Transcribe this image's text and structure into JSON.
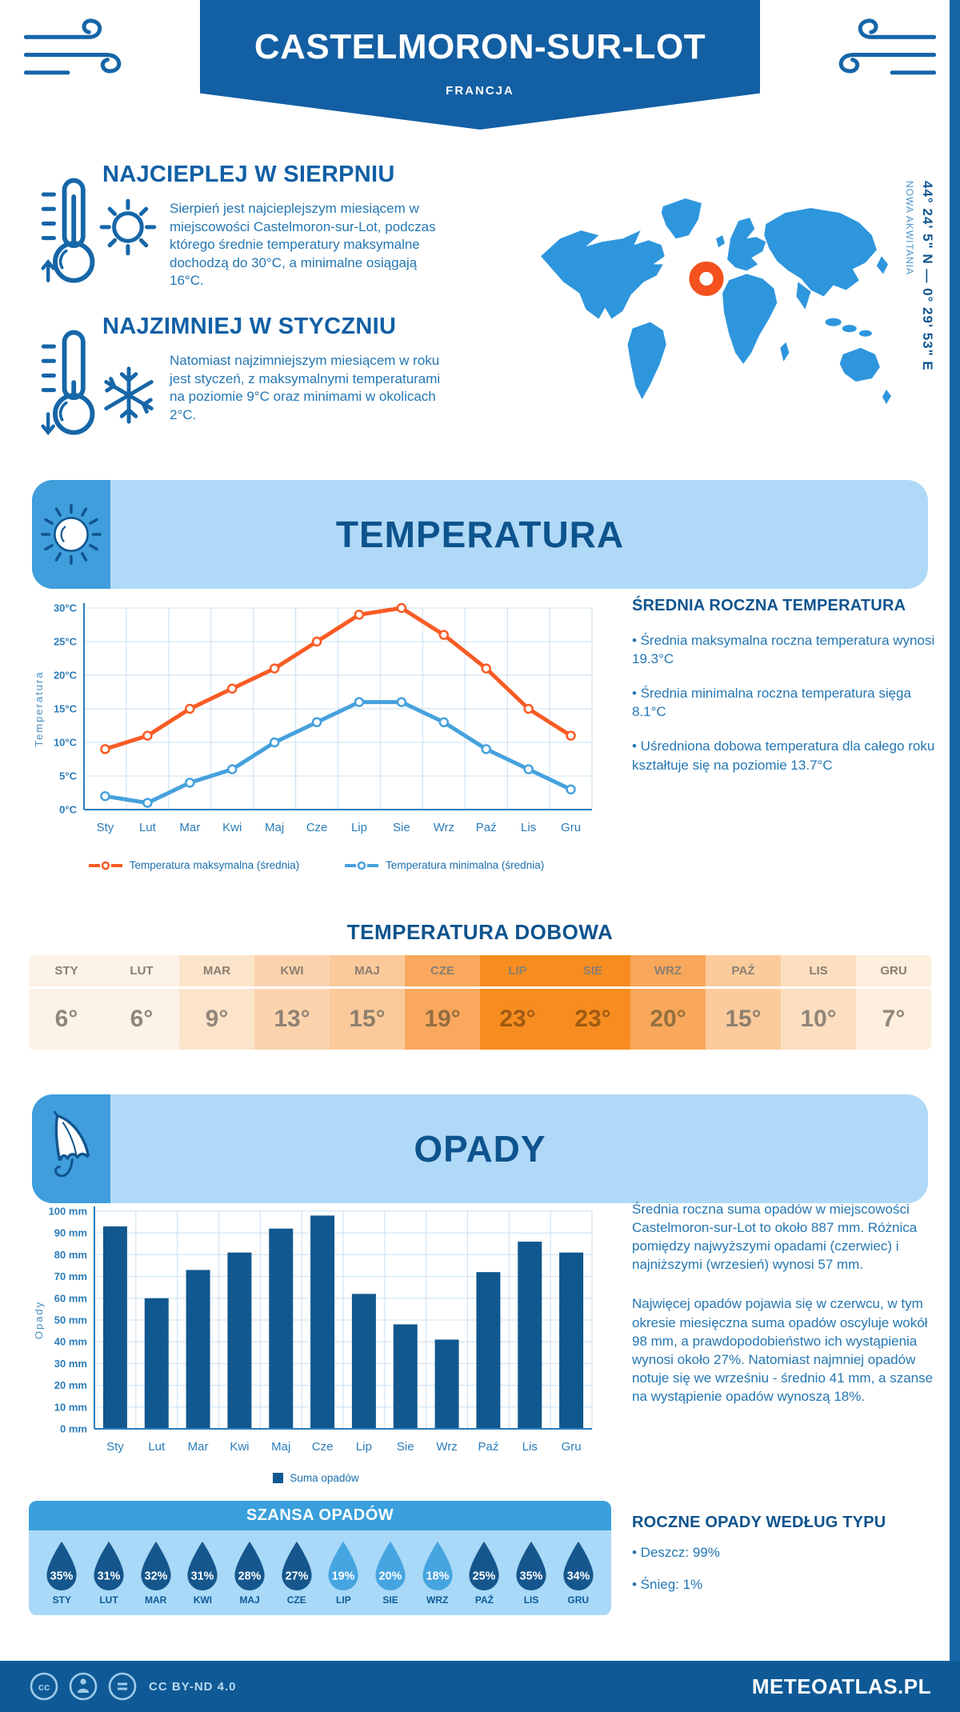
{
  "header": {
    "title": "CASTELMORON-SUR-LOT",
    "subtitle": "FRANCJA"
  },
  "geo": {
    "coordinates": "44° 24' 5\" N — 0° 29' 53\" E",
    "region": "NOWA AKWITANIA"
  },
  "highlights": [
    {
      "heading": "NAJCIEPLEJ W SIERPNIU",
      "text": "Sierpień jest najcieplejszym miesiącem w miejscowości Castelmoron-sur-Lot, podczas którego średnie temperatury maksymalne dochodzą do 30°C, a minimalne osiągają 16°C."
    },
    {
      "heading": "NAJZIMNIEJ W STYCZNIU",
      "text": "Natomiast najzimniejszym miesiącem w roku jest styczeń, z maksymalnymi temperaturami na poziomie 9°C oraz minimami w okolicach 2°C."
    }
  ],
  "sections": {
    "temperature": {
      "banner": "TEMPERATURA",
      "annual_heading": "ŚREDNIA ROCZNA TEMPERATURA",
      "annual_bullets": [
        "• Średnia maksymalna roczna temperatura wynosi 19.3°C",
        "• Średnia minimalna roczna temperatura sięga 8.1°C",
        "• Uśredniona dobowa temperatura dla całego roku kształtuje się na poziomie 13.7°C"
      ],
      "daily_title": "TEMPERATURA DOBOWA"
    },
    "precipitation": {
      "banner": "OPADY",
      "paragraphs": [
        "Średnia roczna suma opadów w miejscowości Castelmoron-sur-Lot to około 887 mm. Różnica pomiędzy najwyższymi opadami (czerwiec) i najniższymi (wrzesień) wynosi 57 mm.",
        "Najwięcej opadów pojawia się w czerwcu, w tym okresie miesięczna suma opadów oscyluje wokół 98 mm, a prawdopodobieństwo ich wystąpienia wynosi około 27%. Natomiast najmniej opadów notuje się we wrześniu - średnio 41 mm, a szanse na wystąpienie opadów wynoszą 18%."
      ],
      "type_heading": "ROCZNE OPADY WEDŁUG TYPU",
      "type_bullets": [
        "• Deszcz: 99%",
        "• Śnieg: 1%"
      ]
    }
  },
  "chart_data": [
    {
      "type": "line",
      "categories": [
        "Sty",
        "Lut",
        "Mar",
        "Kwi",
        "Maj",
        "Cze",
        "Lip",
        "Sie",
        "Wrz",
        "Paź",
        "Lis",
        "Gru"
      ],
      "series": [
        {
          "name": "Temperatura maksymalna (średnia)",
          "color": "#f95b25",
          "values": [
            9,
            11,
            15,
            18,
            21,
            25,
            29,
            30,
            26,
            21,
            15,
            11
          ]
        },
        {
          "name": "Temperatura minimalna (średnia)",
          "color": "#45a1dd",
          "values": [
            2,
            1,
            4,
            6,
            10,
            13,
            16,
            16,
            13,
            9,
            6,
            3
          ]
        }
      ],
      "ylabel": "Temperatura",
      "ylim": [
        0,
        30
      ],
      "ytick_step": 5,
      "ytick_suffix": "°C",
      "grid": true,
      "legend_position": "bottom"
    },
    {
      "type": "bar",
      "categories": [
        "Sty",
        "Lut",
        "Mar",
        "Kwi",
        "Maj",
        "Cze",
        "Lip",
        "Sie",
        "Wrz",
        "Paź",
        "Lis",
        "Gru"
      ],
      "series": [
        {
          "name": "Suma opadów",
          "color": "#11588f",
          "values": [
            93,
            60,
            73,
            81,
            92,
            98,
            62,
            48,
            41,
            72,
            86,
            81
          ]
        }
      ],
      "ylabel": "Opady",
      "ylim": [
        0,
        100
      ],
      "ytick_step": 10,
      "ytick_suffix": " mm",
      "grid": true,
      "legend_position": "bottom"
    }
  ],
  "daily_table": {
    "months": [
      "STY",
      "LUT",
      "MAR",
      "KWI",
      "MAJ",
      "CZE",
      "LIP",
      "SIE",
      "WRZ",
      "PAŹ",
      "LIS",
      "GRU"
    ],
    "values": [
      "6°",
      "6°",
      "9°",
      "13°",
      "15°",
      "19°",
      "23°",
      "23°",
      "20°",
      "15°",
      "10°",
      "7°"
    ],
    "cell_colors": [
      "#fdf2e7",
      "#fdf2e7",
      "#fce4ca",
      "#fbd4ae",
      "#fbca9a",
      "#f9a85d",
      "#f78d20",
      "#f78d20",
      "#f9a75a",
      "#fbcb9c",
      "#fcdfc0",
      "#fdeedd"
    ],
    "month_text_color": "#8a7e71",
    "value_text_colors": [
      "#8f877d",
      "#8f877d",
      "#90857a",
      "#8f8174",
      "#8e7e6c",
      "#936e41",
      "#a05a12",
      "#a05a12",
      "#93703f",
      "#8e7e6c",
      "#90857a",
      "#8f877d"
    ]
  },
  "rain_chance": {
    "title": "SZANSA OPADÓW",
    "months": [
      "STY",
      "LUT",
      "MAR",
      "KWI",
      "MAJ",
      "CZE",
      "LIP",
      "SIE",
      "WRZ",
      "PAŹ",
      "LIS",
      "GRU"
    ],
    "values": [
      "35%",
      "31%",
      "32%",
      "31%",
      "28%",
      "27%",
      "19%",
      "20%",
      "18%",
      "25%",
      "35%",
      "34%"
    ],
    "drop_colors": [
      "#15578d",
      "#15578d",
      "#15578d",
      "#15578d",
      "#15578d",
      "#15578d",
      "#46a5e0",
      "#46a5e0",
      "#46a5e0",
      "#15578d",
      "#15578d",
      "#15578d"
    ]
  },
  "footer": {
    "license": "CC BY-ND 4.0",
    "brand": "METEOATLAS.PL"
  },
  "colors": {
    "brand_dark": "#0e538d",
    "brand": "#1666a8",
    "panel_light": "#b0d9f7",
    "map_land": "#2e96dd",
    "marker": "#f4511e",
    "axis": "#2b7cba",
    "grid": "#c9e0f2"
  }
}
